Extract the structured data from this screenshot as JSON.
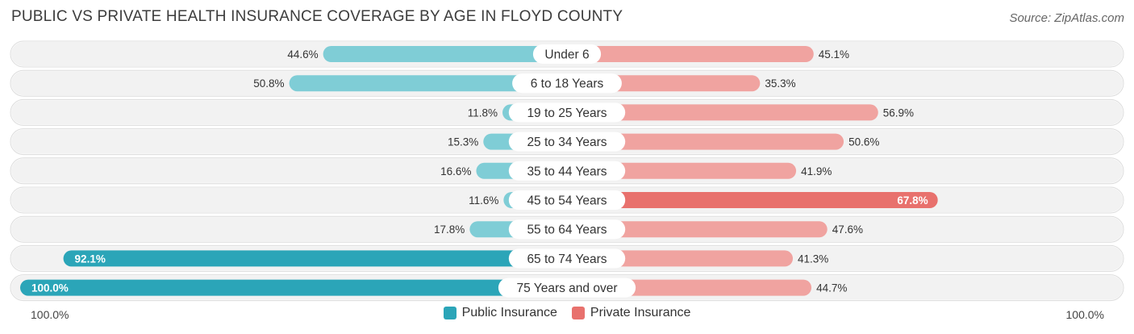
{
  "title": "PUBLIC VS PRIVATE HEALTH INSURANCE COVERAGE BY AGE IN FLOYD COUNTY",
  "source": "Source: ZipAtlas.com",
  "axis": {
    "left_label": "100.0%",
    "right_label": "100.0%"
  },
  "legend": {
    "public_label": "Public Insurance",
    "private_label": "Private Insurance"
  },
  "colors": {
    "public_light": "#7fcdd6",
    "public_dark": "#2ba5b8",
    "private_light": "#f0a3a0",
    "private_dark": "#e8716d",
    "row_bg": "#f2f2f2"
  },
  "chart_data": {
    "type": "bar",
    "orientation": "horizontal-diverging",
    "title": "PUBLIC VS PRIVATE HEALTH INSURANCE COVERAGE BY AGE IN FLOYD COUNTY",
    "categories": [
      "Under 6",
      "6 to 18 Years",
      "19 to 25 Years",
      "25 to 34 Years",
      "35 to 44 Years",
      "45 to 54 Years",
      "55 to 64 Years",
      "65 to 74 Years",
      "75 Years and over"
    ],
    "series": [
      {
        "name": "Public Insurance",
        "values": [
          44.6,
          50.8,
          11.8,
          15.3,
          16.6,
          11.6,
          17.8,
          92.1,
          100.0
        ],
        "labels": [
          "44.6%",
          "50.8%",
          "11.8%",
          "15.3%",
          "16.6%",
          "11.6%",
          "17.8%",
          "92.1%",
          "100.0%"
        ]
      },
      {
        "name": "Private Insurance",
        "values": [
          45.1,
          35.3,
          56.9,
          50.6,
          41.9,
          67.8,
          47.6,
          41.3,
          44.7
        ],
        "labels": [
          "45.1%",
          "35.3%",
          "56.9%",
          "50.6%",
          "41.9%",
          "67.8%",
          "47.6%",
          "41.3%",
          "44.7%"
        ]
      }
    ],
    "xlim": [
      -100,
      100
    ],
    "legend_position": "bottom-center"
  }
}
